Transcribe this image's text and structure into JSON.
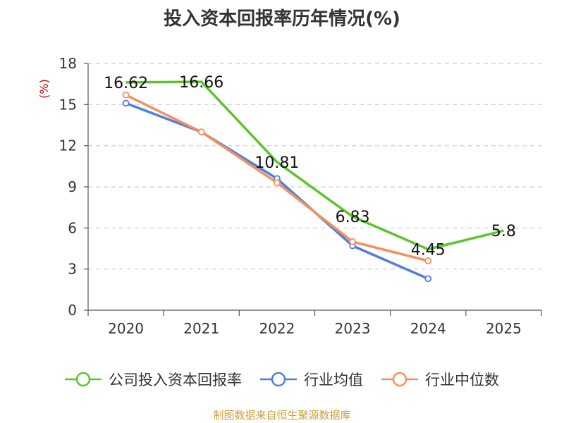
{
  "chart_data": {
    "type": "line",
    "title": "投入资本回报率历年情况(%)",
    "ylabel": "(%)",
    "xlabel": "",
    "ylim": [
      0,
      18
    ],
    "yticks": [
      0,
      3,
      6,
      9,
      12,
      15,
      18
    ],
    "grid": "horizontal-dashed",
    "legend_position": "bottom",
    "categories": [
      "2020",
      "2021",
      "2022",
      "2023",
      "2024",
      "2025"
    ],
    "series": [
      {
        "name": "公司投入资本回报率",
        "color": "#5cc52b",
        "values": [
          16.62,
          16.66,
          10.81,
          6.83,
          4.45,
          5.8
        ],
        "labels": [
          "16.62",
          "16.66",
          "10.81",
          "6.83",
          "4.45",
          "5.8"
        ]
      },
      {
        "name": "行业均值",
        "color": "#4f7fdc",
        "values": [
          15.1,
          13.0,
          9.6,
          4.7,
          2.3,
          null
        ]
      },
      {
        "name": "行业中位数",
        "color": "#f5905a",
        "values": [
          15.7,
          13.0,
          9.3,
          5.0,
          3.6,
          null
        ]
      }
    ]
  },
  "source": "制图数据来自恒生聚源数据库"
}
